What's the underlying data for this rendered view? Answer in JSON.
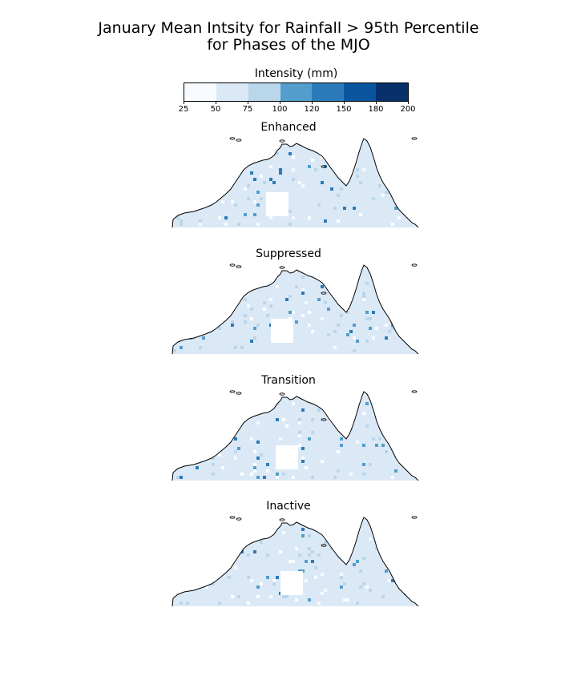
{
  "title": {
    "line1": "January Mean Intsity for Rainfall > 95th Percentile",
    "line2": "for Phases of the MJO"
  },
  "colorbar": {
    "label": "Intensity (mm)",
    "ticks": [
      "25",
      "50",
      "75",
      "100",
      "120",
      "150",
      "180",
      "200"
    ],
    "colors": [
      "#f7fbff",
      "#dbe9f6",
      "#bad6eb",
      "#539ecd",
      "#2b7bba",
      "#0b559f",
      "#08306b"
    ]
  },
  "panels": [
    {
      "title": "Enhanced"
    },
    {
      "title": "Suppressed"
    },
    {
      "title": "Transition"
    },
    {
      "title": "Inactive"
    }
  ]
}
